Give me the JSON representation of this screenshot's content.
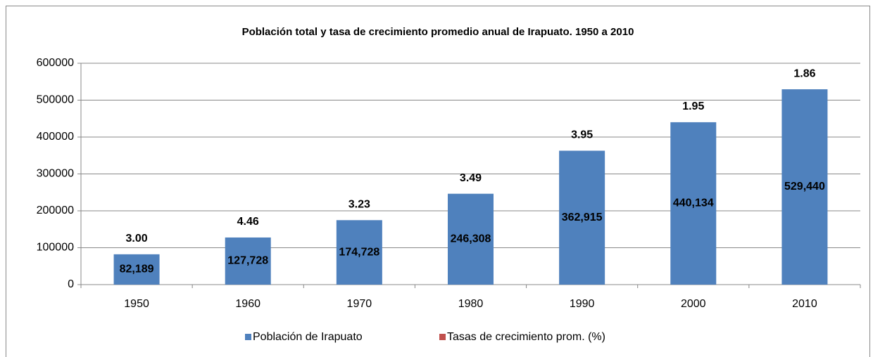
{
  "chart_data": {
    "type": "bar",
    "title": "Población total y tasa de crecimiento promedio anual  de Irapuato. 1950 a 2010",
    "categories": [
      "1950",
      "1960",
      "1970",
      "1980",
      "1990",
      "2000",
      "2010"
    ],
    "series": [
      {
        "name": "Población de Irapuato",
        "color": "#4f81bd",
        "values": [
          82189,
          127728,
          174728,
          246308,
          362915,
          440134,
          529440
        ],
        "value_labels": [
          "82,189",
          "127,728",
          "174,728",
          "246,308",
          "362,915",
          "440,134",
          "529,440"
        ]
      },
      {
        "name": "Tasas de crecimiento prom. (%)",
        "color": "#c0504d",
        "values": [
          3.0,
          4.46,
          3.23,
          3.49,
          3.95,
          1.95,
          1.86
        ],
        "value_labels": [
          "3.00",
          "4.46",
          "3.23",
          "3.49",
          "3.95",
          "1.95",
          "1.86"
        ]
      }
    ],
    "ylim": [
      0,
      600000
    ],
    "yticks": [
      0,
      100000,
      200000,
      300000,
      400000,
      500000,
      600000
    ],
    "grid": true,
    "legend": "bottom"
  }
}
